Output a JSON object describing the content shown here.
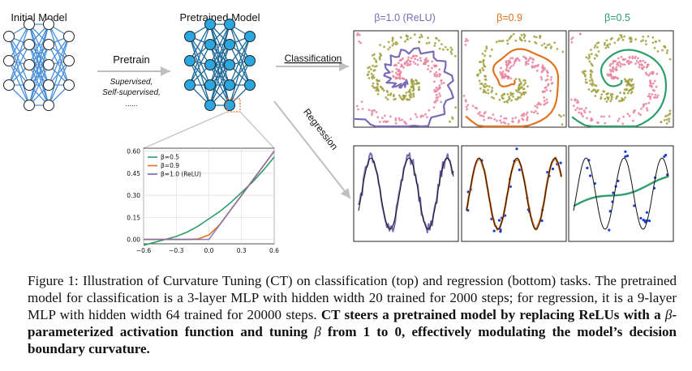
{
  "figure": {
    "initial_label": "Initial Model",
    "pretrained_label": "Pretrained Model",
    "pretrain_label": "Pretrain",
    "pretrain_sub1": "Supervised,",
    "pretrain_sub2": "Self-supervised,",
    "pretrain_sub3": "......",
    "classification_label": "Classification",
    "regression_label": "Regression",
    "panel_titles": [
      "β=1.0 (ReLU)",
      "β=0.9",
      "β=0.5"
    ],
    "colors": {
      "network": "#4a90d9",
      "node": "#2aa7e0",
      "relu": "#7b6bb5",
      "beta09": "#e0731f",
      "beta05": "#2e9e6b",
      "highlight": "#e8743b",
      "pink_points": "#e8849c",
      "olive_points": "#a0a040",
      "reg_points": "#1a3fd1"
    }
  },
  "chart_data": {
    "type": "line",
    "x": [
      -0.6,
      -0.5,
      -0.4,
      -0.3,
      -0.2,
      -0.1,
      0.0,
      0.1,
      0.2,
      0.3,
      0.4,
      0.5,
      0.6
    ],
    "series": [
      {
        "name": "β=0.5",
        "values": [
          -0.04,
          -0.02,
          0.0,
          0.02,
          0.05,
          0.09,
          0.14,
          0.19,
          0.25,
          0.32,
          0.39,
          0.47,
          0.56
        ]
      },
      {
        "name": "β=0.9",
        "values": [
          0.0,
          0.0,
          0.0,
          0.0,
          0.0,
          0.003,
          0.03,
          0.1,
          0.2,
          0.3,
          0.4,
          0.5,
          0.6
        ]
      },
      {
        "name": "β=1.0 (ReLU)",
        "values": [
          0.0,
          0.0,
          0.0,
          0.0,
          0.0,
          0.0,
          0.0,
          0.1,
          0.2,
          0.3,
          0.4,
          0.5,
          0.6
        ]
      }
    ],
    "xticks": [
      "−0.6",
      "−0.3",
      "0.0",
      "0.3",
      "0.6"
    ],
    "yticks": [
      "0.00",
      "0.15",
      "0.30",
      "0.45",
      "0.60"
    ],
    "xlim": [
      -0.6,
      0.6
    ],
    "ylim": [
      -0.03,
      0.62
    ],
    "legend": "top-left",
    "grid": true
  },
  "caption": {
    "lead": "Figure 1: Illustration of Curvature Tuning (CT) on classification (top) and regression (bottom) tasks. The pretrained model for classification is a 3-layer MLP with hidden width 20 trained for 2000 steps; for regression, it is a 9-layer MLP with hidden width 64 trained for 20000 steps.",
    "bold1": "CT steers a pretrained model by replacing ReLUs with a",
    "beta": "β",
    "bold2": "-parameterized activation function and tuning",
    "beta2": "β",
    "bold3": "from 1 to 0, effectively modulating the model’s decision boundary curvature."
  }
}
